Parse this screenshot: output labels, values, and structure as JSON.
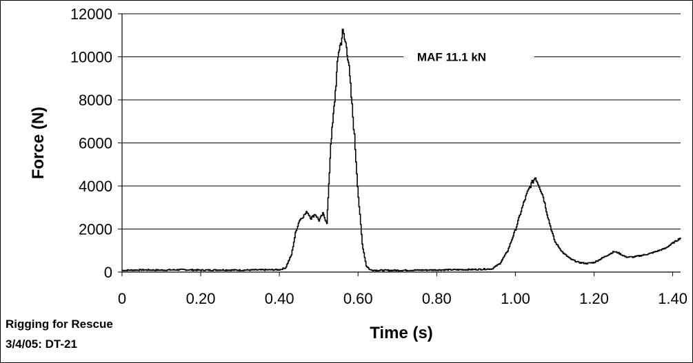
{
  "chart_data": {
    "type": "line",
    "title": "",
    "xlabel": "Time (s)",
    "ylabel": "Force (N)",
    "xlim": [
      0,
      1.42
    ],
    "ylim": [
      0,
      12000
    ],
    "x_ticks": [
      0,
      0.2,
      0.4,
      0.6,
      0.8,
      1.0,
      1.2,
      1.4
    ],
    "x_tick_labels": [
      "0",
      "0.20",
      "0.40",
      "0.60",
      "0.80",
      "1.00",
      "1.20",
      "1.40"
    ],
    "y_ticks": [
      0,
      2000,
      4000,
      6000,
      8000,
      10000,
      12000
    ],
    "y_tick_labels": [
      "0",
      "2000",
      "4000",
      "6000",
      "8000",
      "10000",
      "12000"
    ],
    "grid": "horizontal",
    "legend": "none",
    "line_color": "#000000",
    "annotation": "MAF 11.1 kN",
    "series": [
      {
        "x": [
          0,
          0.05,
          0.1,
          0.15,
          0.2,
          0.25,
          0.3,
          0.35,
          0.4,
          0.415,
          0.43,
          0.44,
          0.45,
          0.46,
          0.47,
          0.48,
          0.49,
          0.5,
          0.51,
          0.52,
          0.525,
          0.53,
          0.535,
          0.54,
          0.545,
          0.55,
          0.555,
          0.56,
          0.565,
          0.57,
          0.575,
          0.58,
          0.59,
          0.6,
          0.61,
          0.62,
          0.63,
          0.65,
          0.7,
          0.8,
          0.9,
          0.94,
          0.96,
          0.98,
          1.0,
          1.02,
          1.03,
          1.04,
          1.05,
          1.055,
          1.06,
          1.07,
          1.08,
          1.09,
          1.1,
          1.12,
          1.14,
          1.16,
          1.18,
          1.2,
          1.22,
          1.24,
          1.25,
          1.26,
          1.28,
          1.3,
          1.34,
          1.38,
          1.42
        ],
        "y": [
          80,
          100,
          90,
          110,
          90,
          100,
          90,
          100,
          110,
          200,
          800,
          1800,
          2400,
          2600,
          2800,
          2500,
          2700,
          2400,
          2700,
          2300,
          4000,
          6000,
          6900,
          8000,
          9200,
          10300,
          10600,
          11100,
          10800,
          10500,
          9800,
          8600,
          6300,
          3500,
          1300,
          300,
          100,
          80,
          80,
          100,
          120,
          150,
          400,
          1000,
          2000,
          3200,
          3700,
          4100,
          4400,
          4200,
          4000,
          3500,
          2700,
          2000,
          1400,
          900,
          600,
          450,
          400,
          450,
          650,
          850,
          950,
          900,
          700,
          700,
          850,
          1100,
          1600
        ]
      }
    ]
  },
  "credit": {
    "line1": "Rigging for Rescue",
    "line2": "3/4/05: DT-21"
  }
}
